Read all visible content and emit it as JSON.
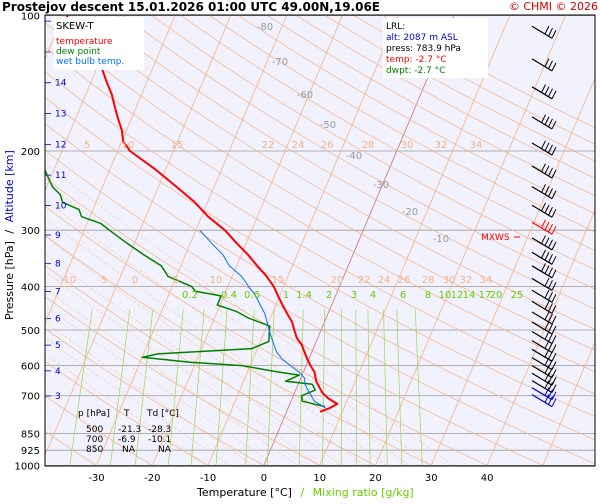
{
  "header": {
    "title": "Prostejov   descent   15.01.2026 01:00 UTC  49.00N,19.06E",
    "copyright": "© CHMI © 2026"
  },
  "legend": {
    "title": "SKEW-T",
    "items": [
      {
        "label": "temperature",
        "color": "#ff0000"
      },
      {
        "label": "dew point",
        "color": "#008000"
      },
      {
        "label": "wet bulb temp.",
        "color": "#0070ff"
      }
    ]
  },
  "lrl_box": {
    "title": "LRL:",
    "lines": [
      {
        "text": "alt: 2087 m ASL",
        "color": "#0000cc"
      },
      {
        "text": "press: 783.9 hPa",
        "color": "#000000"
      },
      {
        "text": "temp: -2.7 °C",
        "color": "#ff0000"
      },
      {
        "text": "dwpt: -2.7 °C",
        "color": "#008000"
      }
    ]
  },
  "mxws_label": "MXWS",
  "table": {
    "headers": [
      "p [hPa]",
      "T",
      "Td [°C]"
    ],
    "rows": [
      [
        "500",
        "-21.3",
        "-28.3"
      ],
      [
        "700",
        "-6.9",
        "-10.1"
      ],
      [
        "850",
        "NA",
        "NA"
      ]
    ]
  },
  "axes": {
    "y_label_pressure": "Pressure [hPa]",
    "y_label_sep": "/",
    "y_label_altitude": "Altitude [km]",
    "x_label_temp": "Temperature [°C]",
    "x_label_sep": "/",
    "x_label_mix": "Mixing ratio [g/kg]"
  },
  "chart_data": {
    "type": "line",
    "pressure_ticks": [
      100,
      200,
      300,
      400,
      500,
      600,
      700,
      850,
      925,
      1000
    ],
    "temperature_ticks": [
      -30,
      -20,
      -10,
      0,
      10,
      20,
      30,
      40
    ],
    "altitude_ticks_km": [
      3,
      4,
      5,
      6,
      7,
      8,
      9,
      10,
      11,
      12,
      13,
      14,
      15,
      16
    ],
    "dry_adiabat_labels": [
      -80,
      -70,
      -60,
      -50,
      -40,
      -30,
      -20,
      -10
    ],
    "moist_adiabat_labels_top": [
      5,
      10,
      15,
      22,
      24,
      26,
      28,
      30,
      32,
      34
    ],
    "moist_adiabat_labels_mid": [
      -10,
      -5,
      0,
      5,
      10,
      15,
      20,
      22,
      24,
      26,
      28,
      30,
      32,
      34
    ],
    "mixing_ratio_labels": [
      "0.2",
      "0.4",
      "0.6",
      "1",
      "1.4",
      "2",
      "3",
      "4",
      "6",
      "8",
      "10",
      "12",
      "14",
      "17",
      "20",
      "25"
    ],
    "series": [
      {
        "name": "temperature",
        "color": "#ff0000",
        "points": [
          [
            760,
            6.0
          ],
          [
            745,
            7.5
          ],
          [
            730,
            8.5
          ],
          [
            710,
            6.5
          ],
          [
            690,
            5.0
          ],
          [
            670,
            4.0
          ],
          [
            650,
            3.0
          ],
          [
            620,
            2.0
          ],
          [
            600,
            0.8
          ],
          [
            580,
            -0.3
          ],
          [
            560,
            -1.3
          ],
          [
            540,
            -2.3
          ],
          [
            520,
            -3.8
          ],
          [
            500,
            -4.8
          ],
          [
            480,
            -5.8
          ],
          [
            460,
            -7.3
          ],
          [
            440,
            -8.8
          ],
          [
            420,
            -10.3
          ],
          [
            400,
            -11.8
          ],
          [
            380,
            -13.8
          ],
          [
            360,
            -16.3
          ],
          [
            340,
            -18.8
          ],
          [
            320,
            -21.8
          ],
          [
            300,
            -24.8
          ],
          [
            280,
            -28.8
          ],
          [
            260,
            -32.3
          ],
          [
            240,
            -36.8
          ],
          [
            220,
            -41.8
          ],
          [
            200,
            -47.8
          ],
          [
            190,
            -49.8
          ],
          [
            180,
            -50.8
          ],
          [
            170,
            -52.3
          ],
          [
            160,
            -53.8
          ],
          [
            150,
            -55.3
          ],
          [
            140,
            -57.3
          ],
          [
            130,
            -59.3
          ],
          [
            120,
            -62.3
          ],
          [
            110,
            -66.3
          ],
          [
            105,
            -68.3
          ],
          [
            100,
            -69.3
          ]
        ]
      },
      {
        "name": "dew point",
        "color": "#008000",
        "points": [
          [
            740,
            6.5
          ],
          [
            720,
            2.0
          ],
          [
            700,
            1.5
          ],
          [
            680,
            3.5
          ],
          [
            660,
            2.5
          ],
          [
            650,
            -2.5
          ],
          [
            640,
            -1.5
          ],
          [
            630,
            -0.5
          ],
          [
            620,
            -4.5
          ],
          [
            600,
            -11.5
          ],
          [
            590,
            -21.0
          ],
          [
            575,
            -30.0
          ],
          [
            565,
            -27.5
          ],
          [
            550,
            -11.0
          ],
          [
            530,
            -8.5
          ],
          [
            510,
            -9.0
          ],
          [
            490,
            -9.5
          ],
          [
            470,
            -14.0
          ],
          [
            455,
            -16.5
          ],
          [
            440,
            -20.5
          ],
          [
            420,
            -20.5
          ],
          [
            410,
            -25.5
          ],
          [
            400,
            -26.5
          ],
          [
            380,
            -31.5
          ],
          [
            360,
            -33.5
          ],
          [
            340,
            -37.5
          ],
          [
            320,
            -41.5
          ],
          [
            300,
            -45.5
          ],
          [
            290,
            -47.5
          ],
          [
            280,
            -51.5
          ],
          [
            270,
            -52.5
          ],
          [
            260,
            -56.0
          ],
          [
            250,
            -57.0
          ],
          [
            240,
            -59.0
          ],
          [
            225,
            -61.0
          ],
          [
            210,
            -63.0
          ],
          [
            200,
            -66.0
          ],
          [
            185,
            -67.5
          ],
          [
            170,
            -69.5
          ],
          [
            155,
            -72.5
          ],
          [
            140,
            -74.5
          ],
          [
            125,
            -76.5
          ],
          [
            115,
            -77.5
          ],
          [
            105,
            -78.5
          ],
          [
            100,
            -79.5
          ]
        ]
      },
      {
        "name": "wet bulb temp.",
        "color": "#0070ff",
        "points": [
          [
            745,
            6.7
          ],
          [
            720,
            4.2
          ],
          [
            700,
            3.2
          ],
          [
            680,
            2.2
          ],
          [
            660,
            1.2
          ],
          [
            640,
            0.7
          ],
          [
            620,
            -0.8
          ],
          [
            600,
            -2.8
          ],
          [
            580,
            -4.8
          ],
          [
            560,
            -6.3
          ],
          [
            540,
            -7.3
          ],
          [
            520,
            -8.3
          ],
          [
            500,
            -9.3
          ],
          [
            480,
            -10.3
          ],
          [
            460,
            -11.3
          ],
          [
            440,
            -12.8
          ],
          [
            420,
            -14.3
          ],
          [
            400,
            -16.3
          ],
          [
            380,
            -18.3
          ],
          [
            360,
            -21.3
          ],
          [
            340,
            -23.3
          ],
          [
            320,
            -26.3
          ],
          [
            300,
            -29.3
          ]
        ]
      }
    ],
    "wind_pressures": [
      110,
      130,
      150,
      175,
      200,
      225,
      250,
      275,
      300,
      325,
      350,
      375,
      400,
      425,
      450,
      475,
      500,
      525,
      550,
      575,
      600,
      625,
      650,
      675,
      700,
      725
    ]
  }
}
